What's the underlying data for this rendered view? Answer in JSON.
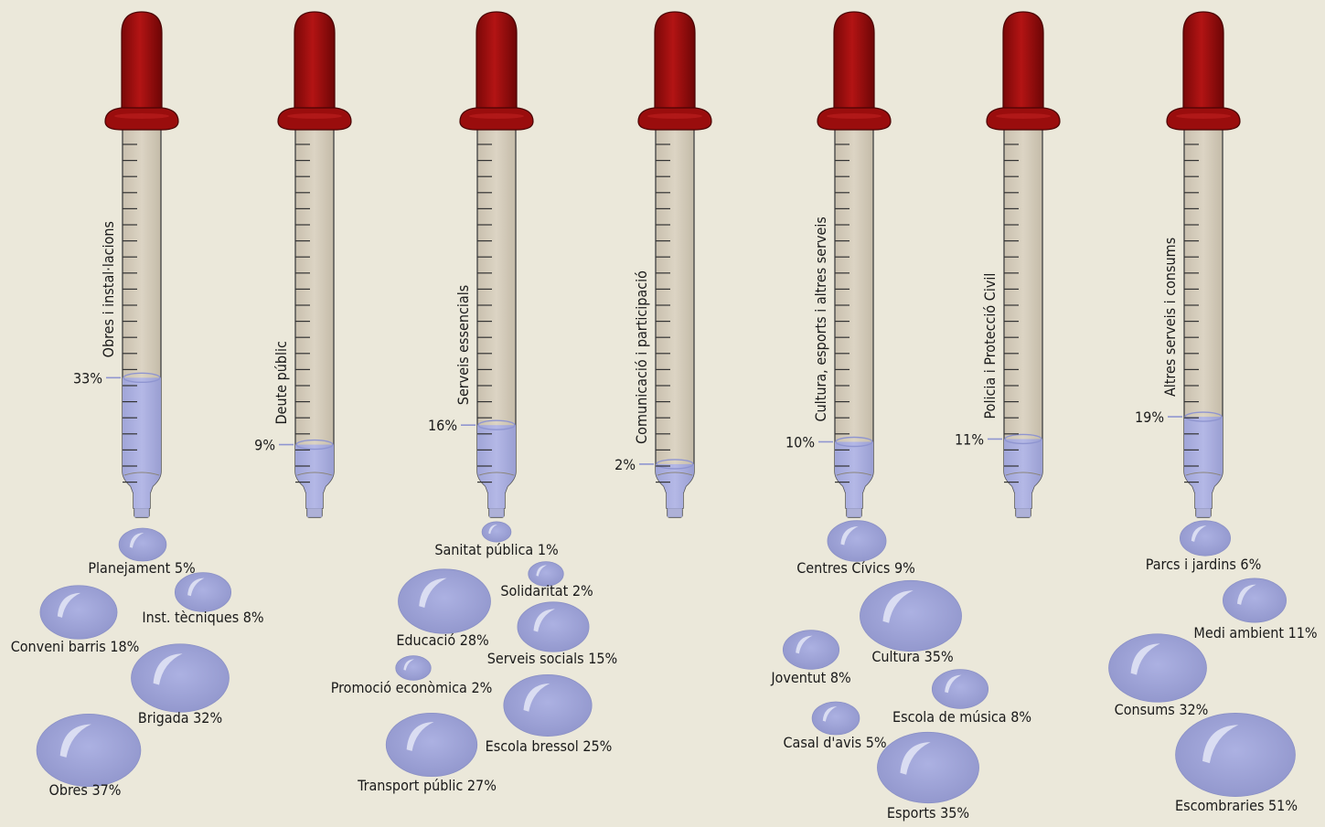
{
  "chart_data": {
    "type": "bar",
    "colors": {
      "background": "#ebe8da",
      "bulb": "#a01010",
      "tube": "#d8d0c0",
      "liquid": "#a7acdc",
      "drop": "#a0a6d8"
    },
    "tubes": [
      {
        "label": "Obres i instal·lacions",
        "value": 33,
        "value_label": "33%"
      },
      {
        "label": "Deute públic",
        "value": 9,
        "value_label": "9%"
      },
      {
        "label": "Serveis essencials",
        "value": 16,
        "value_label": "16%"
      },
      {
        "label": "Comunicació i participació",
        "value": 2,
        "value_label": "2%"
      },
      {
        "label": "Cultura, esports i altres serveis",
        "value": 10,
        "value_label": "10%"
      },
      {
        "label": "Policia i Protecció Civil",
        "value": 11,
        "value_label": "11%"
      },
      {
        "label": "Altres serveis i consums",
        "value": 19,
        "value_label": "19%"
      }
    ],
    "drops": [
      {
        "group": "Obres i instal·lacions",
        "label": "Planejament 5%",
        "value": 5
      },
      {
        "group": "Obres i instal·lacions",
        "label": "Inst. tècniques 8%",
        "value": 8
      },
      {
        "group": "Obres i instal·lacions",
        "label": "Conveni barris 18%",
        "value": 18
      },
      {
        "group": "Obres i instal·lacions",
        "label": "Brigada 32%",
        "value": 32
      },
      {
        "group": "Obres i instal·lacions",
        "label": "Obres 37%",
        "value": 37
      },
      {
        "group": "Serveis essencials",
        "label": "Sanitat pública 1%",
        "value": 1
      },
      {
        "group": "Serveis essencials",
        "label": "Solidaritat 2%",
        "value": 2
      },
      {
        "group": "Serveis essencials",
        "label": "Educació 28%",
        "value": 28
      },
      {
        "group": "Serveis essencials",
        "label": "Serveis socials 15%",
        "value": 15
      },
      {
        "group": "Serveis essencials",
        "label": "Promoció econòmica 2%",
        "value": 2
      },
      {
        "group": "Serveis essencials",
        "label": "Escola bressol 25%",
        "value": 25
      },
      {
        "group": "Serveis essencials",
        "label": "Transport públic 27%",
        "value": 27
      },
      {
        "group": "Cultura, esports i altres serveis",
        "label": "Centres Cívics 9%",
        "value": 9
      },
      {
        "group": "Cultura, esports i altres serveis",
        "label": "Cultura 35%",
        "value": 35
      },
      {
        "group": "Cultura, esports i altres serveis",
        "label": "Joventut 8%",
        "value": 8
      },
      {
        "group": "Cultura, esports i altres serveis",
        "label": "Escola de música 8%",
        "value": 8
      },
      {
        "group": "Cultura, esports i altres serveis",
        "label": "Casal d'avis 5%",
        "value": 5
      },
      {
        "group": "Cultura, esports i altres serveis",
        "label": "Esports 35%",
        "value": 35
      },
      {
        "group": "Altres serveis i consums",
        "label": "Parcs i jardins 6%",
        "value": 6
      },
      {
        "group": "Altres serveis i consums",
        "label": "Medi ambient 11%",
        "value": 11
      },
      {
        "group": "Altres serveis i consums",
        "label": "Consums 32%",
        "value": 32
      },
      {
        "group": "Altres serveis i consums",
        "label": "Escombraries 51%",
        "value": 51
      }
    ]
  }
}
